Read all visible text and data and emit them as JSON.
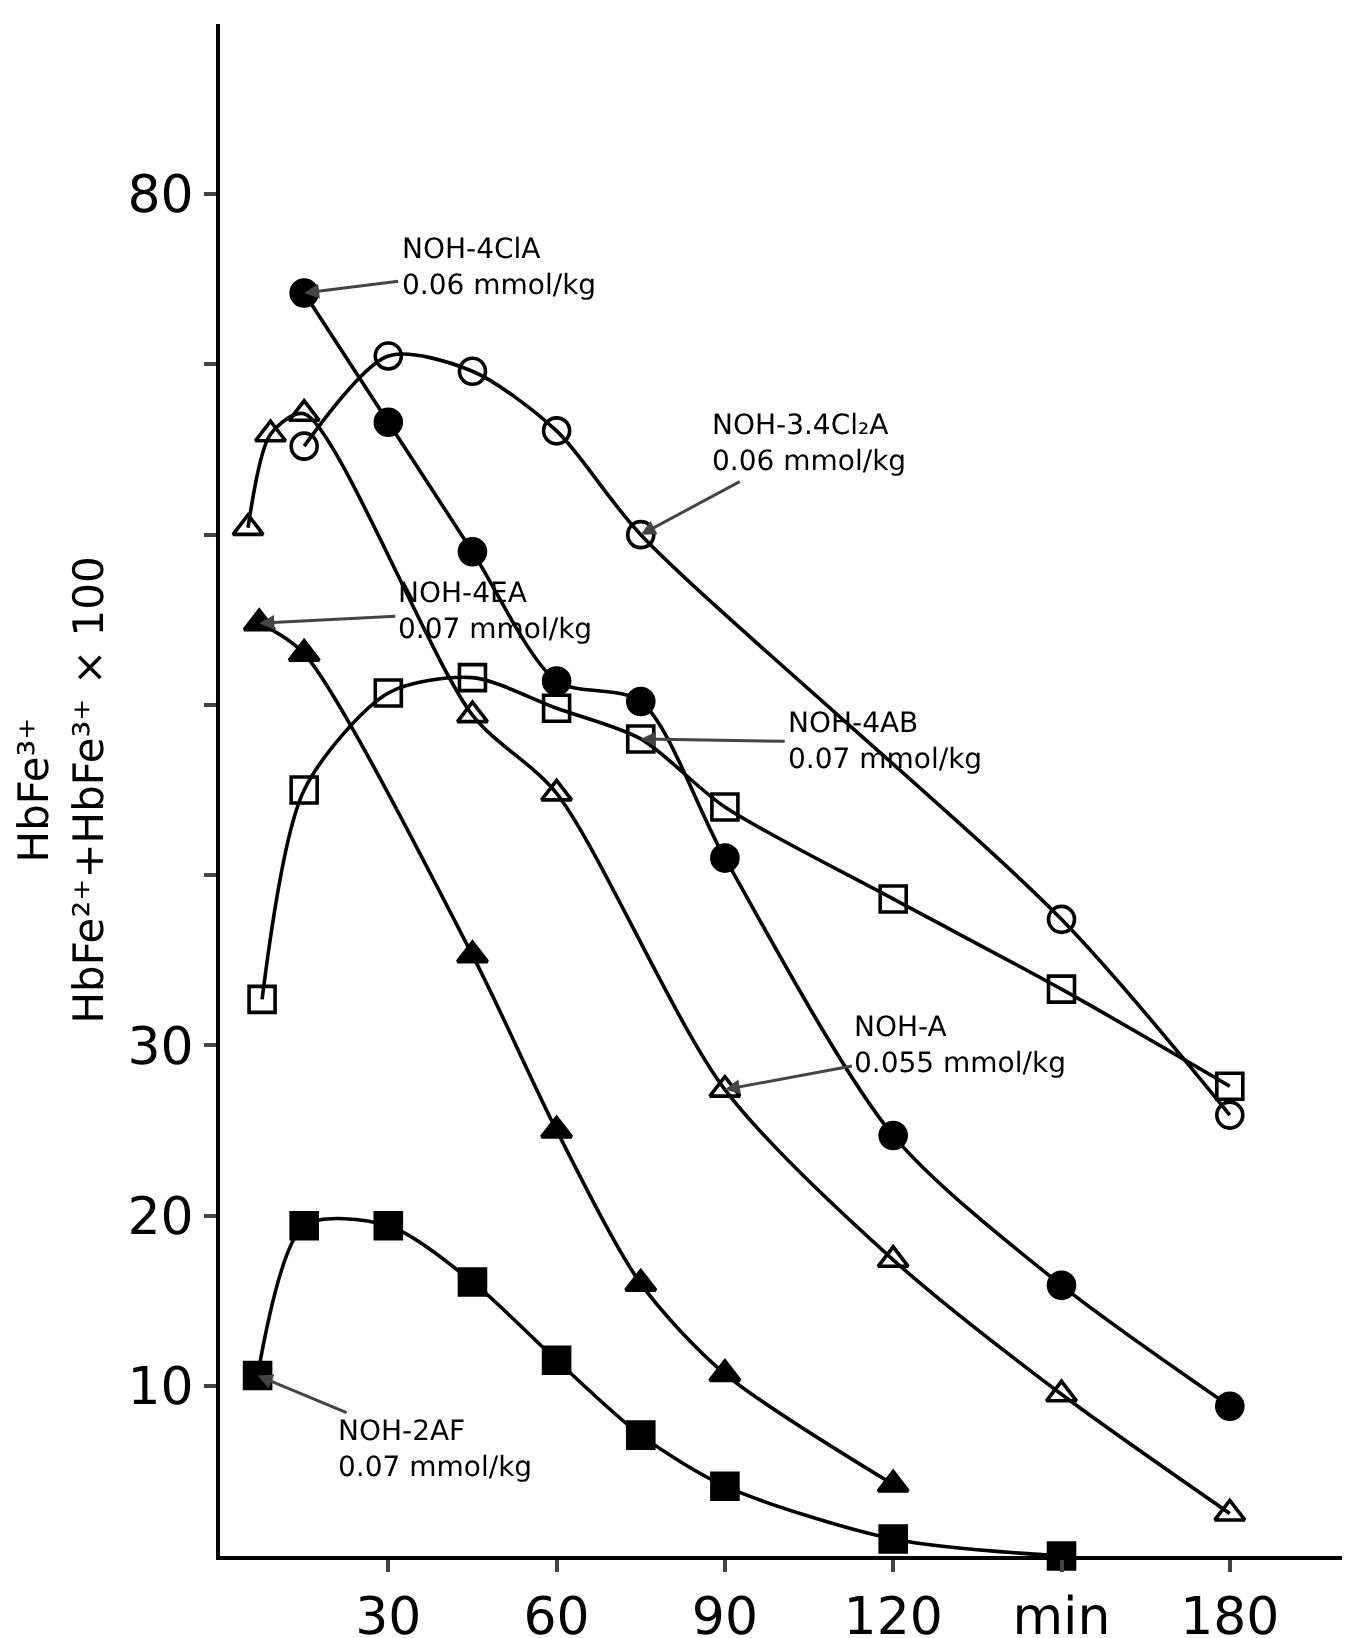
{
  "chart_data": {
    "type": "line",
    "ylabel": "HbFe³⁺\nHbFe²⁺+HbFe³⁺ × 100",
    "xlim": [
      0,
      200
    ],
    "ylim": [
      0,
      90
    ],
    "xticks": [
      30,
      60,
      90,
      120,
      {
        "value": 150,
        "label": "min"
      },
      180
    ],
    "yticks": [
      10,
      20,
      30,
      {
        "value": 40,
        "label": null
      },
      {
        "value": 50,
        "label": null
      },
      {
        "value": 60,
        "label": null
      },
      {
        "value": 70,
        "label": null
      },
      80
    ],
    "grid": false,
    "line_style": "solid",
    "series": [
      {
        "color": "#000000",
        "marker": "circle",
        "x": [
          15,
          30,
          45,
          60,
          75,
          90,
          120,
          150,
          180
        ],
        "values": [
          74.2,
          66.6,
          59,
          51.4,
          50.2,
          41,
          24.7,
          15.9,
          8.8
        ]
      },
      {
        "color": "#000000",
        "marker": "circle-open",
        "x": [
          15,
          30,
          45,
          60,
          75,
          150,
          180
        ],
        "values": [
          65.2,
          70.5,
          69.6,
          66.1,
          60,
          37.4,
          25.9
        ]
      },
      {
        "color": "#000000",
        "marker": "square-open",
        "x": [
          7.5,
          15,
          30,
          45,
          60,
          75,
          90,
          120,
          150,
          180
        ],
        "values": [
          32.7,
          45,
          50.7,
          51.6,
          49.8,
          48,
          44,
          38.6,
          33.3,
          27.6
        ]
      },
      {
        "color": "#000000",
        "marker": "triangle-open",
        "x": [
          5,
          9,
          15,
          45,
          60,
          90,
          120,
          150,
          180
        ],
        "values": [
          60.4,
          65.9,
          67.1,
          49.4,
          44.8,
          27.4,
          17.4,
          9.5,
          2.5
        ]
      },
      {
        "color": "#000000",
        "marker": "triangle",
        "x": [
          7,
          15,
          45,
          60,
          75,
          90,
          120
        ],
        "values": [
          54.8,
          53,
          35.3,
          25,
          16,
          10.7,
          4.2
        ]
      },
      {
        "color": "#000000",
        "marker": "square",
        "x": [
          6.7,
          15,
          30,
          45,
          60,
          75,
          90,
          120,
          150
        ],
        "values": [
          10.6,
          19.4,
          19.4,
          16.1,
          11.5,
          7.1,
          4.1,
          1,
          0
        ]
      }
    ],
    "annotations": [
      {
        "text": "NOH-4ClA\n0.06 mmol/kg",
        "x": 15,
        "y": 74.2
      },
      {
        "text": "NOH-3.4Cl₂A\n0.06 mmol/kg",
        "x": 75,
        "y": 60
      },
      {
        "text": "NOH-4EA\n0.07 mmol/kg",
        "x": 7,
        "y": 54.8
      },
      {
        "text": "NOH-4AB\n0.07 mmol/kg",
        "x": 75,
        "y": 48
      },
      {
        "text": "NOH-A\n0.055 mmol/kg",
        "x": 90,
        "y": 27.4
      },
      {
        "text": "NOH-2AF\n0.07 mmol/kg",
        "x": 6.7,
        "y": 10.6
      }
    ]
  }
}
